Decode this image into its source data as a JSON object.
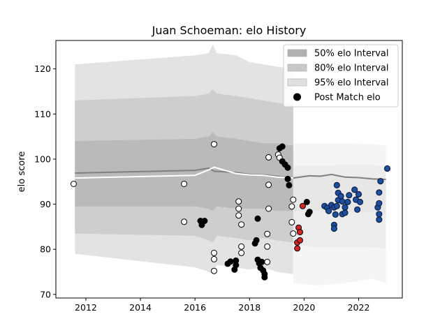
{
  "chart_data": {
    "type": "scatter",
    "title": "Juan Schoeman: elo History",
    "xlabel": "",
    "ylabel": "elo score",
    "xlim": [
      2010.9,
      2023.6
    ],
    "ylim": [
      69.2,
      126.3
    ],
    "xticks": [
      2012,
      2014,
      2016,
      2018,
      2020,
      2022
    ],
    "yticks": [
      70,
      80,
      90,
      100,
      110,
      120
    ],
    "legend_position": "top-right",
    "legend": [
      {
        "label": "50% elo Interval",
        "kind": "band",
        "color": "#b0b0b0"
      },
      {
        "label": "80% elo Interval",
        "kind": "band",
        "color": "#c8c8c8"
      },
      {
        "label": "95% elo Interval",
        "kind": "band",
        "color": "#e0e0e0"
      },
      {
        "label": "Post Match elo",
        "kind": "marker",
        "color": "#000000"
      }
    ],
    "bands": {
      "x": [
        2011.6,
        2016.0,
        2016.5,
        2016.65,
        2016.8,
        2017.5,
        2018.0,
        2018.5,
        2019.0,
        2019.6
      ],
      "p95_upper": [
        121.0,
        123.0,
        123.5,
        125.5,
        123.5,
        123.0,
        121.5,
        121.0,
        120.5,
        120.0
      ],
      "p95_lower": [
        79.0,
        76.0,
        75.0,
        74.5,
        76.5,
        76.0,
        75.5,
        76.0,
        75.0,
        74.5
      ],
      "p80_upper": [
        113.0,
        114.0,
        114.5,
        115.5,
        114.5,
        114.0,
        113.5,
        113.0,
        112.5,
        112.0
      ],
      "p80_lower": [
        83.5,
        83.0,
        82.0,
        81.5,
        83.0,
        82.5,
        82.0,
        82.5,
        82.0,
        81.5
      ],
      "p50_upper": [
        104.0,
        104.5,
        105.0,
        106.0,
        105.0,
        104.5,
        104.0,
        103.5,
        103.5,
        103.0
      ],
      "p50_lower": [
        89.5,
        89.5,
        89.0,
        88.5,
        89.5,
        89.0,
        89.0,
        89.0,
        88.5,
        88.5
      ]
    },
    "faint_bands": {
      "x": [
        2019.6,
        2020.5,
        2021.5,
        2022.5,
        2023.0
      ],
      "p95_upper": [
        103.5,
        103.5,
        103.5,
        103.3,
        103.0
      ],
      "p95_lower": [
        72.5,
        72.0,
        72.5,
        73.5,
        72.5
      ],
      "p80_upper": [
        98.5,
        98.5,
        98.8,
        98.7,
        98.5
      ],
      "p80_lower": [
        81.0,
        80.5,
        80.5,
        80.5,
        80.0
      ],
      "p50_upper": [
        96.5,
        96.5,
        96.2,
        96.0,
        95.5
      ],
      "p50_lower": [
        88.5,
        88.5,
        88.3,
        88.2,
        88.0
      ]
    },
    "mean_line": {
      "x": [
        2011.6,
        2016.0,
        2016.5,
        2016.7,
        2017.5,
        2018.0,
        2018.5,
        2019.0,
        2019.6,
        2020.2,
        2020.6,
        2021.0,
        2021.5,
        2022.0,
        2022.5,
        2023.0
      ],
      "y": [
        96.9,
        97.5,
        98.0,
        97.3,
        97.0,
        96.6,
        96.5,
        96.2,
        95.8,
        96.3,
        96.2,
        96.6,
        96.0,
        95.9,
        95.6,
        95.5
      ]
    },
    "median_line": {
      "x": [
        2011.6,
        2016.0,
        2016.5,
        2016.7,
        2017.5,
        2018.0,
        2018.5,
        2019.0,
        2019.6
      ],
      "y": [
        95.8,
        96.4,
        97.6,
        98.2,
        96.8,
        96.5,
        96.4,
        96.0,
        95.8
      ]
    },
    "series": [
      {
        "color": "#ffffff",
        "points": [
          [
            2011.55,
            94.5
          ],
          [
            2015.6,
            94.5
          ],
          [
            2015.6,
            86.1
          ],
          [
            2016.7,
            103.3
          ],
          [
            2016.7,
            79.2
          ],
          [
            2016.7,
            77.8
          ],
          [
            2016.7,
            75.2
          ],
          [
            2017.6,
            90.6
          ],
          [
            2017.6,
            89.0
          ],
          [
            2017.6,
            87.5
          ],
          [
            2017.7,
            85.5
          ],
          [
            2017.7,
            80.6
          ],
          [
            2017.7,
            79.2
          ],
          [
            2018.7,
            100.4
          ],
          [
            2018.7,
            94.3
          ],
          [
            2018.7,
            89.0
          ],
          [
            2018.65,
            83.4
          ],
          [
            2018.65,
            80.6
          ],
          [
            2018.65,
            77.2
          ],
          [
            2019.05,
            101.0
          ],
          [
            2019.1,
            100.3
          ],
          [
            2019.6,
            91.0
          ],
          [
            2019.55,
            89.5
          ],
          [
            2019.55,
            86.0
          ],
          [
            2019.6,
            83.5
          ]
        ]
      },
      {
        "color": "#000000",
        "points": [
          [
            2016.2,
            86.3
          ],
          [
            2016.25,
            85.4
          ],
          [
            2016.35,
            86.3
          ],
          [
            2017.2,
            76.8
          ],
          [
            2017.3,
            77.3
          ],
          [
            2017.5,
            77.5
          ],
          [
            2017.5,
            76.5
          ],
          [
            2017.45,
            75.5
          ],
          [
            2018.2,
            81.3
          ],
          [
            2018.25,
            82.0
          ],
          [
            2018.3,
            86.8
          ],
          [
            2018.3,
            77.7
          ],
          [
            2018.35,
            76.9
          ],
          [
            2018.4,
            75.9
          ],
          [
            2018.45,
            77.2
          ],
          [
            2018.5,
            75.3
          ],
          [
            2018.55,
            74.5
          ],
          [
            2018.55,
            73.8
          ],
          [
            2019.1,
            102.4
          ],
          [
            2019.2,
            102.8
          ],
          [
            2019.2,
            99.5
          ],
          [
            2019.3,
            98.8
          ],
          [
            2019.4,
            98.1
          ],
          [
            2019.4,
            95.6
          ],
          [
            2019.45,
            94.2
          ],
          [
            2020.1,
            90.5
          ],
          [
            2020.15,
            87.8
          ],
          [
            2020.2,
            88.3
          ]
        ]
      },
      {
        "color": "#d62728",
        "points": [
          [
            2019.8,
            84.8
          ],
          [
            2019.85,
            83.8
          ],
          [
            2019.75,
            81.5
          ],
          [
            2019.85,
            82.0
          ],
          [
            2019.75,
            80.2
          ],
          [
            2019.95,
            89.6
          ]
        ]
      },
      {
        "color": "#1f4f9c",
        "points": [
          [
            2020.75,
            89.6
          ],
          [
            2020.85,
            89.2
          ],
          [
            2020.9,
            88.5
          ],
          [
            2021.0,
            89.8
          ],
          [
            2021.1,
            89.3
          ],
          [
            2021.15,
            87.7
          ],
          [
            2021.1,
            85.4
          ],
          [
            2021.1,
            84.6
          ],
          [
            2021.2,
            89.6
          ],
          [
            2021.25,
            90.9
          ],
          [
            2021.25,
            92.5
          ],
          [
            2021.2,
            94.2
          ],
          [
            2021.35,
            91.8
          ],
          [
            2021.4,
            90.6
          ],
          [
            2021.5,
            89.3
          ],
          [
            2021.4,
            87.8
          ],
          [
            2021.5,
            88.1
          ],
          [
            2021.6,
            90.5
          ],
          [
            2021.65,
            92.0
          ],
          [
            2021.85,
            93.2
          ],
          [
            2021.9,
            91.0
          ],
          [
            2022.0,
            92.2
          ],
          [
            2021.95,
            88.8
          ],
          [
            2022.05,
            90.5
          ],
          [
            2022.7,
            89.3
          ],
          [
            2022.75,
            90.2
          ],
          [
            2022.75,
            92.6
          ],
          [
            2022.8,
            95.1
          ],
          [
            2022.75,
            87.8
          ],
          [
            2022.75,
            86.6
          ],
          [
            2023.05,
            97.9
          ]
        ]
      }
    ]
  }
}
